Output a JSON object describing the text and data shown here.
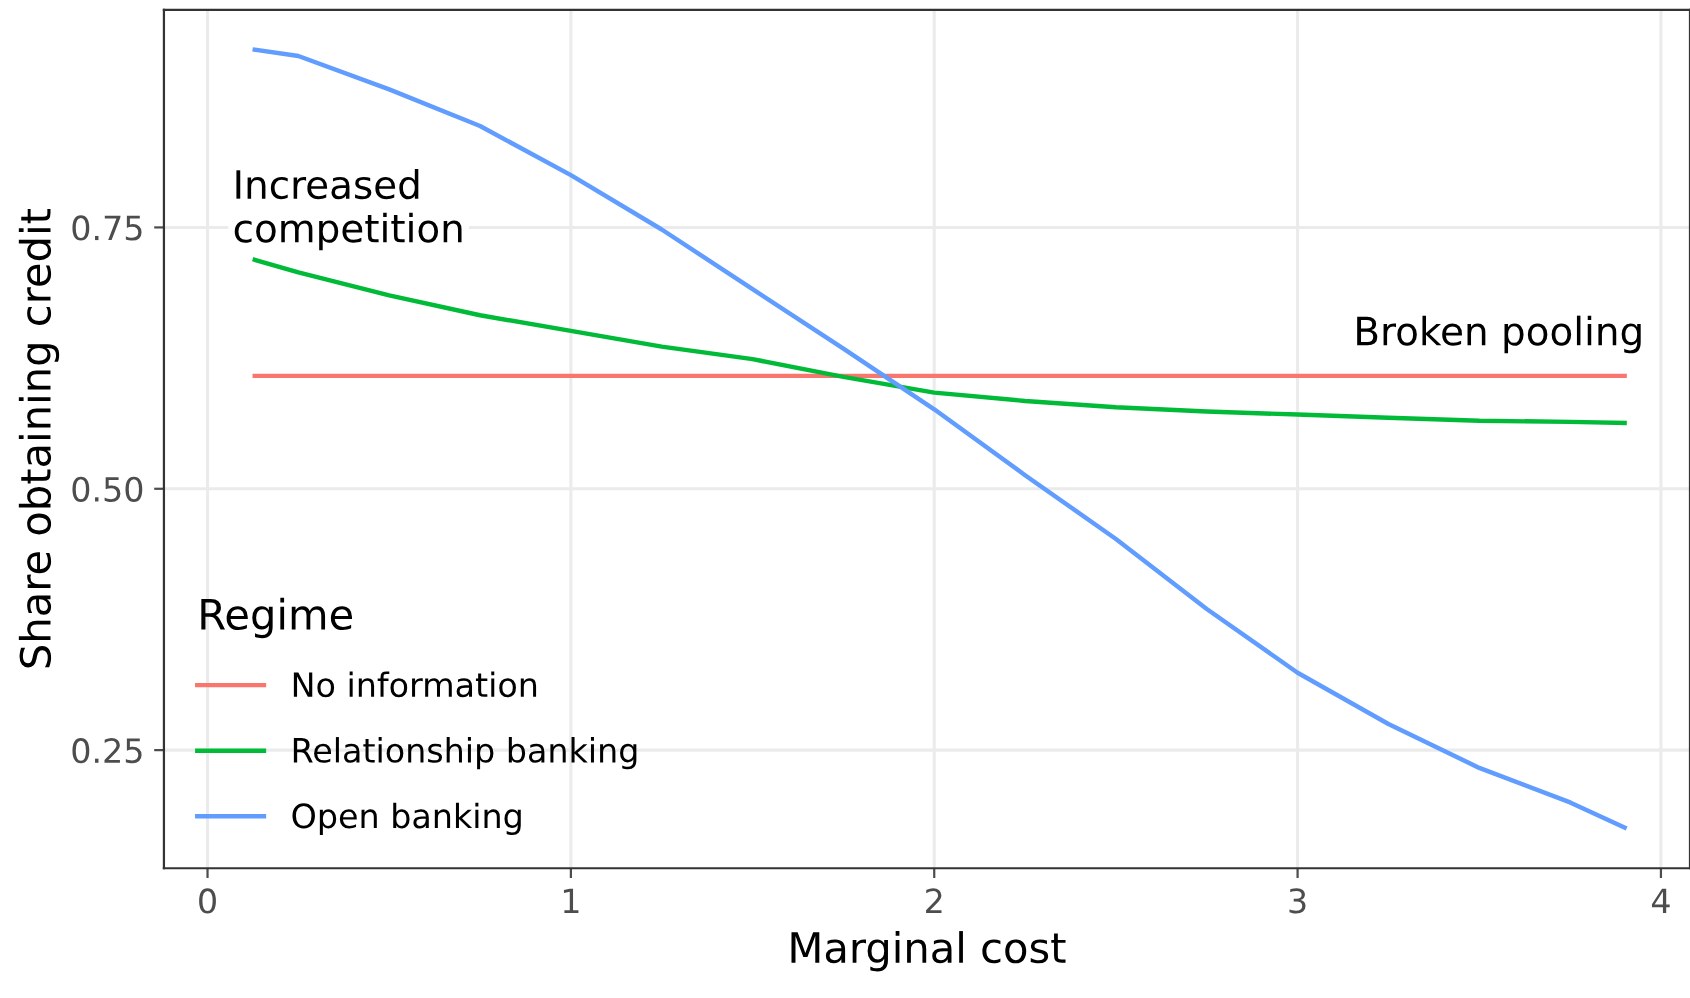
{
  "chart_data": {
    "type": "line",
    "xlabel": "Marginal cost",
    "ylabel": "Share obtaining credit",
    "legend_title": "Regime",
    "legend": "bottom left",
    "grid": true,
    "line_style": "solid",
    "xlim": [
      -0.12,
      4.08
    ],
    "ylim": [
      0.137,
      0.958
    ],
    "xticks": [
      0,
      1,
      2,
      3,
      4
    ],
    "yticks": [
      {
        "value": 0.25,
        "label": "0.25"
      },
      {
        "value": 0.5,
        "label": "0.50"
      },
      {
        "value": 0.75,
        "label": "0.75"
      }
    ],
    "x": [
      0.13,
      0.25,
      0.5,
      0.75,
      1,
      1.25,
      1.5,
      1.75,
      2,
      2.25,
      2.5,
      2.75,
      3,
      3.25,
      3.5,
      3.75,
      3.9
    ],
    "series": [
      {
        "name": "No information",
        "color": "#f8766d",
        "values": [
          0.608,
          0.608,
          0.608,
          0.608,
          0.608,
          0.608,
          0.608,
          0.608,
          0.608,
          0.608,
          0.608,
          0.608,
          0.608,
          0.608,
          0.608,
          0.608,
          0.608
        ]
      },
      {
        "name": "Relationship banking",
        "color": "#00ba38",
        "values": [
          0.719,
          0.707,
          0.685,
          0.666,
          0.651,
          0.636,
          0.624,
          0.607,
          0.592,
          0.584,
          0.578,
          0.574,
          0.571,
          0.568,
          0.565,
          0.564,
          0.563
        ]
      },
      {
        "name": "Open banking",
        "color": "#619cff",
        "values": [
          0.92,
          0.914,
          0.882,
          0.847,
          0.8,
          0.748,
          0.691,
          0.634,
          0.576,
          0.513,
          0.452,
          0.385,
          0.324,
          0.275,
          0.233,
          0.2,
          0.176
        ]
      }
    ],
    "annotations": [
      "Increased\ncompetition",
      "Broken pooling"
    ]
  }
}
